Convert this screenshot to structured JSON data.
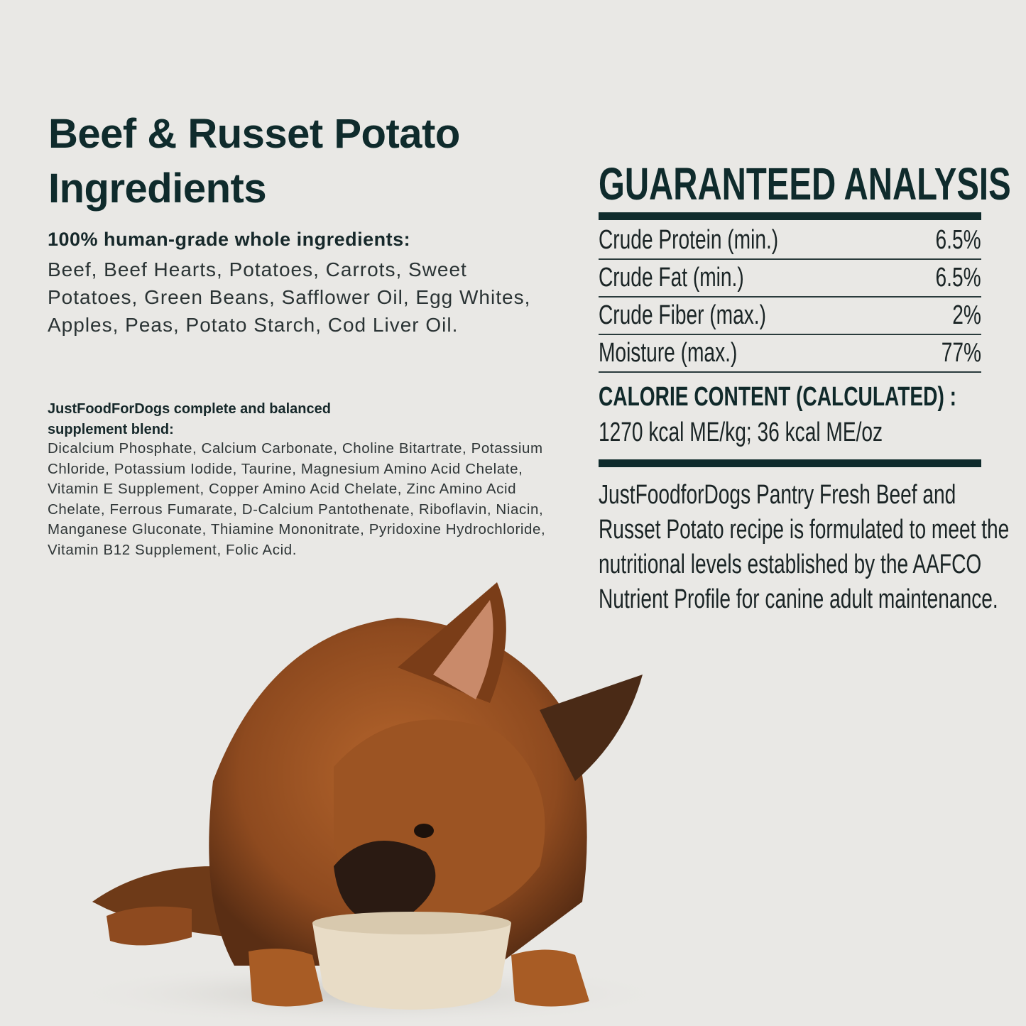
{
  "header": {
    "title_line1": "Beef & Russet Potato",
    "title_line2": "Ingredients"
  },
  "ingredients": {
    "heading": "100% human-grade whole ingredients:",
    "text": "Beef, Beef Hearts, Potatoes, Carrots, Sweet Potatoes, Green Beans, Safflower Oil, Egg Whites, Apples, Peas, Potato Starch, Cod Liver Oil."
  },
  "supplement": {
    "heading": "JustFoodForDogs complete and balanced supplement blend:",
    "text": "Dicalcium Phosphate, Calcium Carbonate, Choline Bitartrate, Potassium Chloride, Potassium Iodide, Taurine, Magnesium Amino Acid Chelate, Vitamin E Supplement, Copper Amino Acid Chelate, Zinc Amino Acid Chelate, Ferrous Fumarate, D-Calcium Pantothenate, Riboflavin, Niacin, Manganese Gluconate, Thiamine Mononitrate, Pyridoxine Hydrochloride, Vitamin B12 Supplement, Folic Acid."
  },
  "analysis": {
    "title": "GUARANTEED ANALYSIS",
    "rows": [
      {
        "label": "Crude Protein (min.)",
        "value": "6.5%"
      },
      {
        "label": "Crude Fat (min.)",
        "value": "6.5%"
      },
      {
        "label": "Crude Fiber (max.)",
        "value": "2%"
      },
      {
        "label": "Moisture (max.)",
        "value": "77%"
      }
    ],
    "calorie_heading": "CALORIE CONTENT (CALCULATED) :",
    "calorie_value": "1270 kcal ME/kg; 36 kcal ME/oz"
  },
  "statement": {
    "lines": [
      "JustFoodforDogs Pantry Fresh  Beef and",
      "Russet Potato recipe is formulated to meet the",
      "nutritional levels established by the AAFCO",
      "Nutrient Profile for canine adult maintenance."
    ]
  },
  "colors": {
    "background": "#e9e8e5",
    "text_dark": "#0f2b2c"
  }
}
